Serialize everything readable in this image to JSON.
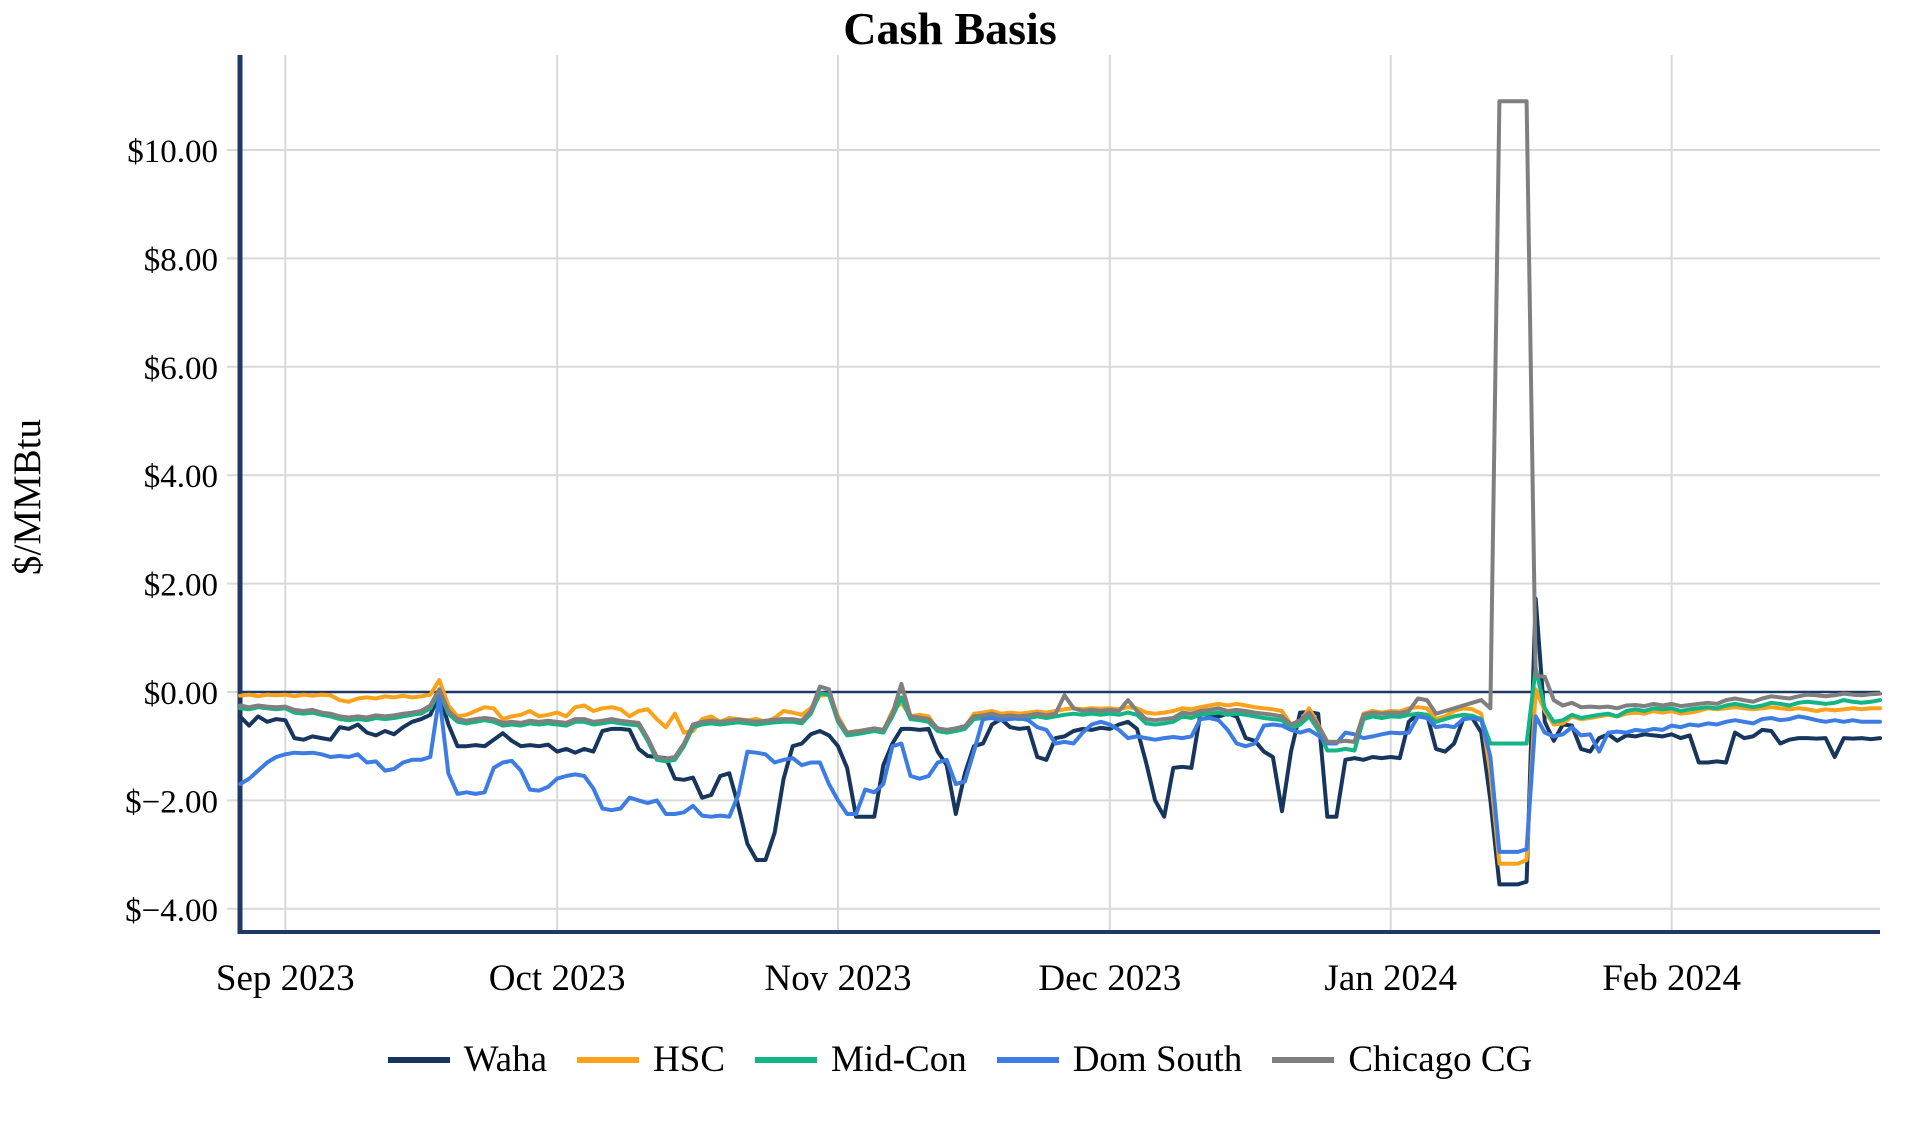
{
  "title": "Cash Basis",
  "y_axis_title": "$/MMBtu",
  "colors": {
    "axis": "#1f3864",
    "zero_line": "#1f3864",
    "grid": "#d9d9d9",
    "background": "#ffffff"
  },
  "chart_data": {
    "type": "line",
    "title": "Cash Basis",
    "ylabel": "$/MMBtu",
    "xlabel": "",
    "ylim": [
      -4.45,
      11.75
    ],
    "grid": "on",
    "legend_position": "bottom",
    "x_unit": "day-index (daily points, late Aug 2023 through late Feb 2024)",
    "x_tick_labels": [
      "Sep 2023",
      "Oct 2023",
      "Nov 2023",
      "Dec 2023",
      "Jan 2024",
      "Feb 2024"
    ],
    "x_tick_days": [
      5,
      35,
      66,
      96,
      127,
      158
    ],
    "y_tick_values": [
      10,
      8,
      6,
      4,
      2,
      0,
      -2,
      -4
    ],
    "y_tick_labels": [
      "$10.00",
      "$8.00",
      "$6.00",
      "$4.00",
      "$2.00",
      "$0.00",
      "$−2.00",
      "$−4.00"
    ],
    "series": [
      {
        "name": "Waha",
        "color": "#17365d",
        "values": [
          -0.45,
          -0.62,
          -0.45,
          -0.55,
          -0.5,
          -0.52,
          -0.85,
          -0.88,
          -0.82,
          -0.85,
          -0.88,
          -0.65,
          -0.68,
          -0.6,
          -0.75,
          -0.8,
          -0.72,
          -0.78,
          -0.65,
          -0.55,
          -0.5,
          -0.42,
          -0.05,
          -0.6,
          -1.0,
          -1.0,
          -0.98,
          -1.0,
          -0.88,
          -0.76,
          -0.9,
          -1.0,
          -0.98,
          -1.0,
          -0.97,
          -1.1,
          -1.05,
          -1.12,
          -1.05,
          -1.1,
          -0.72,
          -0.68,
          -0.68,
          -0.7,
          -1.05,
          -1.18,
          -1.2,
          -1.22,
          -1.6,
          -1.62,
          -1.58,
          -1.95,
          -1.9,
          -1.55,
          -1.5,
          -2.1,
          -2.8,
          -3.1,
          -3.1,
          -2.6,
          -1.6,
          -1.0,
          -0.95,
          -0.78,
          -0.72,
          -0.8,
          -1.0,
          -1.4,
          -2.3,
          -2.3,
          -2.3,
          -1.35,
          -0.95,
          -0.68,
          -0.68,
          -0.7,
          -0.68,
          -1.1,
          -1.35,
          -2.25,
          -1.5,
          -1.0,
          -0.95,
          -0.6,
          -0.5,
          -0.65,
          -0.68,
          -0.66,
          -1.2,
          -1.25,
          -0.85,
          -0.82,
          -0.72,
          -0.68,
          -0.7,
          -0.66,
          -0.68,
          -0.6,
          -0.55,
          -0.68,
          -1.3,
          -2.0,
          -2.3,
          -1.4,
          -1.38,
          -1.4,
          -0.4,
          -0.42,
          -0.45,
          -0.4,
          -0.45,
          -0.85,
          -0.9,
          -1.1,
          -1.2,
          -2.2,
          -1.1,
          -0.38,
          -0.37,
          -0.4,
          -2.3,
          -2.3,
          -1.25,
          -1.22,
          -1.25,
          -1.2,
          -1.22,
          -1.2,
          -1.22,
          -0.55,
          -0.4,
          -0.42,
          -1.05,
          -1.1,
          -0.95,
          -0.5,
          -0.48,
          -0.75,
          -2.0,
          -3.55,
          -3.55,
          -3.55,
          -3.5,
          1.72,
          -0.55,
          -0.9,
          -0.6,
          -0.62,
          -1.05,
          -1.1,
          -0.85,
          -0.78,
          -0.9,
          -0.8,
          -0.82,
          -0.78,
          -0.8,
          -0.82,
          -0.78,
          -0.85,
          -0.8,
          -1.3,
          -1.3,
          -1.28,
          -1.3,
          -0.75,
          -0.85,
          -0.82,
          -0.7,
          -0.72,
          -0.95,
          -0.88,
          -0.85,
          -0.85,
          -0.86,
          -0.85,
          -1.2,
          -0.85,
          -0.86,
          -0.85,
          -0.87,
          -0.85
        ]
      },
      {
        "name": "HSC",
        "color": "#faa21b",
        "values": [
          -0.07,
          -0.05,
          -0.08,
          -0.05,
          -0.06,
          -0.05,
          -0.08,
          -0.05,
          -0.07,
          -0.05,
          -0.06,
          -0.15,
          -0.18,
          -0.12,
          -0.1,
          -0.12,
          -0.08,
          -0.1,
          -0.07,
          -0.1,
          -0.08,
          -0.05,
          0.22,
          -0.25,
          -0.45,
          -0.42,
          -0.35,
          -0.28,
          -0.3,
          -0.5,
          -0.45,
          -0.42,
          -0.35,
          -0.45,
          -0.42,
          -0.38,
          -0.45,
          -0.28,
          -0.25,
          -0.35,
          -0.3,
          -0.28,
          -0.32,
          -0.45,
          -0.35,
          -0.32,
          -0.5,
          -0.65,
          -0.4,
          -0.75,
          -0.72,
          -0.5,
          -0.45,
          -0.55,
          -0.48,
          -0.5,
          -0.52,
          -0.5,
          -0.55,
          -0.48,
          -0.35,
          -0.38,
          -0.42,
          -0.3,
          -0.07,
          -0.05,
          -0.45,
          -0.75,
          -0.72,
          -0.75,
          -0.7,
          -0.72,
          -0.35,
          -0.2,
          -0.45,
          -0.42,
          -0.45,
          -0.7,
          -0.72,
          -0.7,
          -0.65,
          -0.4,
          -0.38,
          -0.35,
          -0.4,
          -0.38,
          -0.4,
          -0.38,
          -0.36,
          -0.38,
          -0.35,
          -0.32,
          -0.3,
          -0.32,
          -0.3,
          -0.31,
          -0.3,
          -0.32,
          -0.28,
          -0.3,
          -0.38,
          -0.4,
          -0.38,
          -0.35,
          -0.3,
          -0.32,
          -0.28,
          -0.25,
          -0.22,
          -0.25,
          -0.22,
          -0.25,
          -0.28,
          -0.3,
          -0.32,
          -0.35,
          -0.6,
          -0.55,
          -0.3,
          -0.6,
          -0.92,
          -0.92,
          -0.9,
          -0.92,
          -0.4,
          -0.35,
          -0.38,
          -0.35,
          -0.36,
          -0.3,
          -0.28,
          -0.3,
          -0.5,
          -0.45,
          -0.35,
          -0.3,
          -0.32,
          -0.4,
          -1.5,
          -3.17,
          -3.17,
          -3.17,
          -3.1,
          0.05,
          -0.35,
          -0.6,
          -0.58,
          -0.45,
          -0.5,
          -0.48,
          -0.45,
          -0.42,
          -0.45,
          -0.4,
          -0.38,
          -0.4,
          -0.35,
          -0.38,
          -0.35,
          -0.4,
          -0.38,
          -0.35,
          -0.3,
          -0.32,
          -0.3,
          -0.28,
          -0.3,
          -0.32,
          -0.3,
          -0.28,
          -0.3,
          -0.32,
          -0.3,
          -0.32,
          -0.35,
          -0.32,
          -0.34,
          -0.32,
          -0.3,
          -0.32,
          -0.3,
          -0.3
        ]
      },
      {
        "name": "Mid-Con",
        "color": "#14b584",
        "values": [
          -0.3,
          -0.32,
          -0.28,
          -0.3,
          -0.32,
          -0.3,
          -0.38,
          -0.4,
          -0.38,
          -0.42,
          -0.45,
          -0.5,
          -0.52,
          -0.5,
          -0.52,
          -0.48,
          -0.5,
          -0.48,
          -0.45,
          -0.42,
          -0.4,
          -0.3,
          0.02,
          -0.4,
          -0.55,
          -0.58,
          -0.55,
          -0.52,
          -0.55,
          -0.62,
          -0.6,
          -0.62,
          -0.58,
          -0.6,
          -0.58,
          -0.6,
          -0.62,
          -0.55,
          -0.55,
          -0.6,
          -0.58,
          -0.55,
          -0.58,
          -0.6,
          -0.62,
          -0.9,
          -1.25,
          -1.28,
          -1.25,
          -1.0,
          -0.65,
          -0.6,
          -0.58,
          -0.6,
          -0.58,
          -0.56,
          -0.58,
          -0.6,
          -0.58,
          -0.56,
          -0.55,
          -0.55,
          -0.58,
          -0.4,
          -0.02,
          -0.05,
          -0.55,
          -0.8,
          -0.78,
          -0.75,
          -0.72,
          -0.75,
          -0.45,
          -0.1,
          -0.5,
          -0.52,
          -0.55,
          -0.72,
          -0.75,
          -0.72,
          -0.68,
          -0.5,
          -0.48,
          -0.45,
          -0.5,
          -0.48,
          -0.5,
          -0.48,
          -0.45,
          -0.48,
          -0.45,
          -0.42,
          -0.4,
          -0.42,
          -0.4,
          -0.42,
          -0.4,
          -0.42,
          -0.38,
          -0.42,
          -0.58,
          -0.6,
          -0.58,
          -0.55,
          -0.45,
          -0.48,
          -0.42,
          -0.4,
          -0.38,
          -0.42,
          -0.4,
          -0.42,
          -0.45,
          -0.48,
          -0.5,
          -0.52,
          -0.68,
          -0.6,
          -0.45,
          -0.7,
          -1.08,
          -1.08,
          -1.05,
          -1.08,
          -0.5,
          -0.45,
          -0.48,
          -0.45,
          -0.46,
          -0.42,
          -0.4,
          -0.42,
          -0.55,
          -0.5,
          -0.45,
          -0.42,
          -0.44,
          -0.5,
          -0.95,
          -0.95,
          -0.95,
          -0.95,
          -0.95,
          0.44,
          -0.3,
          -0.55,
          -0.52,
          -0.42,
          -0.48,
          -0.45,
          -0.42,
          -0.4,
          -0.45,
          -0.35,
          -0.32,
          -0.35,
          -0.3,
          -0.32,
          -0.3,
          -0.35,
          -0.32,
          -0.3,
          -0.28,
          -0.3,
          -0.25,
          -0.22,
          -0.25,
          -0.28,
          -0.25,
          -0.2,
          -0.22,
          -0.25,
          -0.2,
          -0.18,
          -0.2,
          -0.22,
          -0.2,
          -0.15,
          -0.18,
          -0.2,
          -0.18,
          -0.15
        ]
      },
      {
        "name": "Dom South",
        "color": "#3d7de3",
        "values": [
          -1.7,
          -1.6,
          -1.45,
          -1.3,
          -1.2,
          -1.15,
          -1.12,
          -1.13,
          -1.12,
          -1.15,
          -1.2,
          -1.18,
          -1.2,
          -1.15,
          -1.3,
          -1.28,
          -1.45,
          -1.42,
          -1.3,
          -1.25,
          -1.25,
          -1.2,
          -0.08,
          -1.5,
          -1.88,
          -1.85,
          -1.88,
          -1.85,
          -1.4,
          -1.3,
          -1.27,
          -1.45,
          -1.8,
          -1.82,
          -1.75,
          -1.6,
          -1.55,
          -1.52,
          -1.55,
          -1.78,
          -2.15,
          -2.18,
          -2.15,
          -1.95,
          -2.0,
          -2.05,
          -2.0,
          -2.25,
          -2.25,
          -2.22,
          -2.1,
          -2.28,
          -2.3,
          -2.28,
          -2.3,
          -1.9,
          -1.1,
          -1.12,
          -1.15,
          -1.3,
          -1.25,
          -1.22,
          -1.35,
          -1.3,
          -1.3,
          -1.7,
          -2.0,
          -2.25,
          -2.25,
          -1.8,
          -1.85,
          -1.7,
          -1.0,
          -0.95,
          -1.55,
          -1.6,
          -1.55,
          -1.3,
          -1.25,
          -1.7,
          -1.65,
          -1.1,
          -0.5,
          -0.48,
          -0.52,
          -0.5,
          -0.48,
          -0.52,
          -0.65,
          -0.7,
          -0.95,
          -0.92,
          -0.95,
          -0.75,
          -0.6,
          -0.55,
          -0.6,
          -0.7,
          -0.85,
          -0.82,
          -0.85,
          -0.88,
          -0.85,
          -0.83,
          -0.85,
          -0.82,
          -0.5,
          -0.48,
          -0.52,
          -0.7,
          -0.95,
          -1.0,
          -0.95,
          -0.62,
          -0.6,
          -0.62,
          -0.7,
          -0.75,
          -0.7,
          -0.8,
          -0.95,
          -0.95,
          -0.75,
          -0.78,
          -0.85,
          -0.82,
          -0.78,
          -0.75,
          -0.76,
          -0.75,
          -0.45,
          -0.48,
          -0.65,
          -0.62,
          -0.65,
          -0.5,
          -0.48,
          -0.52,
          -1.2,
          -2.95,
          -2.95,
          -2.95,
          -2.9,
          -0.45,
          -0.75,
          -0.82,
          -0.78,
          -0.65,
          -0.8,
          -0.78,
          -1.1,
          -0.75,
          -0.73,
          -0.75,
          -0.7,
          -0.72,
          -0.68,
          -0.7,
          -0.62,
          -0.65,
          -0.6,
          -0.62,
          -0.58,
          -0.6,
          -0.55,
          -0.52,
          -0.55,
          -0.58,
          -0.5,
          -0.48,
          -0.52,
          -0.5,
          -0.45,
          -0.48,
          -0.52,
          -0.55,
          -0.52,
          -0.55,
          -0.52,
          -0.55,
          -0.55,
          -0.55
        ]
      },
      {
        "name": "Chicago CG",
        "color": "#7f7f7f",
        "values": [
          -0.25,
          -0.28,
          -0.25,
          -0.27,
          -0.28,
          -0.27,
          -0.33,
          -0.35,
          -0.33,
          -0.38,
          -0.4,
          -0.45,
          -0.47,
          -0.45,
          -0.47,
          -0.43,
          -0.45,
          -0.43,
          -0.4,
          -0.38,
          -0.35,
          -0.25,
          0.05,
          -0.35,
          -0.5,
          -0.53,
          -0.5,
          -0.48,
          -0.5,
          -0.57,
          -0.55,
          -0.57,
          -0.53,
          -0.55,
          -0.53,
          -0.55,
          -0.57,
          -0.5,
          -0.5,
          -0.55,
          -0.53,
          -0.5,
          -0.53,
          -0.55,
          -0.57,
          -0.85,
          -1.2,
          -1.23,
          -1.2,
          -0.95,
          -0.6,
          -0.55,
          -0.53,
          -0.55,
          -0.53,
          -0.51,
          -0.53,
          -0.55,
          -0.53,
          -0.51,
          -0.5,
          -0.5,
          -0.53,
          -0.35,
          0.1,
          0.05,
          -0.5,
          -0.75,
          -0.73,
          -0.7,
          -0.67,
          -0.7,
          -0.4,
          0.15,
          -0.45,
          -0.47,
          -0.5,
          -0.67,
          -0.7,
          -0.67,
          -0.63,
          -0.45,
          -0.43,
          -0.4,
          -0.45,
          -0.43,
          -0.45,
          -0.43,
          -0.4,
          -0.43,
          -0.4,
          -0.06,
          -0.3,
          -0.35,
          -0.33,
          -0.35,
          -0.33,
          -0.35,
          -0.15,
          -0.35,
          -0.5,
          -0.52,
          -0.5,
          -0.48,
          -0.38,
          -0.4,
          -0.35,
          -0.33,
          -0.3,
          -0.35,
          -0.33,
          -0.35,
          -0.38,
          -0.4,
          -0.42,
          -0.45,
          -0.6,
          -0.52,
          -0.38,
          -0.62,
          -0.92,
          -0.92,
          -0.9,
          -0.92,
          -0.42,
          -0.38,
          -0.4,
          -0.38,
          -0.39,
          -0.35,
          -0.12,
          -0.15,
          -0.4,
          -0.35,
          -0.3,
          -0.25,
          -0.2,
          -0.15,
          -0.3,
          10.9,
          10.9,
          10.9,
          10.9,
          0.3,
          0.28,
          -0.15,
          -0.25,
          -0.2,
          -0.28,
          -0.27,
          -0.28,
          -0.27,
          -0.3,
          -0.25,
          -0.24,
          -0.26,
          -0.22,
          -0.25,
          -0.22,
          -0.26,
          -0.24,
          -0.22,
          -0.2,
          -0.22,
          -0.15,
          -0.12,
          -0.15,
          -0.18,
          -0.12,
          -0.08,
          -0.1,
          -0.12,
          -0.08,
          -0.05,
          -0.06,
          -0.08,
          -0.06,
          -0.03,
          -0.05,
          -0.06,
          -0.04,
          -0.03
        ]
      }
    ]
  }
}
